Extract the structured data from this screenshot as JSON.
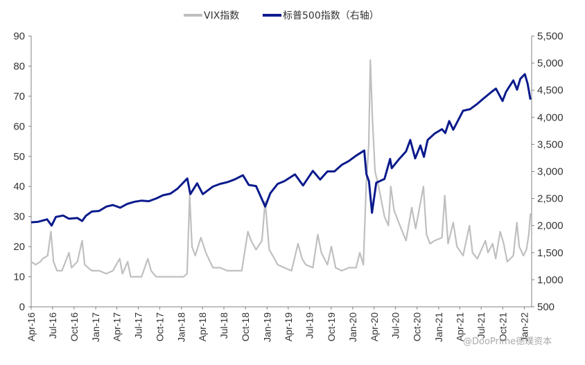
{
  "chart_data": {
    "type": "line",
    "title": "",
    "xlabel": "",
    "ylabel": "",
    "legend_position": "top-center",
    "grid": false,
    "x_tick_labels": [
      "Apr-16",
      "Jul-16",
      "Oct-16",
      "Jan-17",
      "Apr-17",
      "Jul-17",
      "Oct-17",
      "Jan-18",
      "Apr-18",
      "Jul-18",
      "Oct-18",
      "Jan-19",
      "Apr-19",
      "Jul-19",
      "Oct-19",
      "Jan-20",
      "Apr-20",
      "Jul-20",
      "Oct-20",
      "Jan-21",
      "Apr-21",
      "Jul-21",
      "Oct-21",
      "Jan-22"
    ],
    "y_left": {
      "ylim": [
        0,
        90
      ],
      "ticks": [
        "0",
        "10",
        "20",
        "30",
        "40",
        "50",
        "60",
        "70",
        "80",
        "90"
      ]
    },
    "y_right": {
      "ylim": [
        500,
        5500
      ],
      "ticks": [
        "500",
        "1,000",
        "1,500",
        "2,000",
        "2,500",
        "3,000",
        "3,500",
        "4,000",
        "4,500",
        "5,000",
        "5,500"
      ]
    },
    "series": [
      {
        "name": "VIX指数",
        "axis": "left",
        "color": "#bfbfbf",
        "points": [
          [
            "2016-04-01",
            15
          ],
          [
            "2016-04-20",
            14
          ],
          [
            "2016-05-10",
            15
          ],
          [
            "2016-05-20",
            16
          ],
          [
            "2016-06-10",
            17
          ],
          [
            "2016-06-24",
            25
          ],
          [
            "2016-07-05",
            15
          ],
          [
            "2016-07-20",
            12
          ],
          [
            "2016-08-10",
            12
          ],
          [
            "2016-09-09",
            18
          ],
          [
            "2016-09-20",
            13
          ],
          [
            "2016-10-15",
            15
          ],
          [
            "2016-11-04",
            22
          ],
          [
            "2016-11-15",
            14
          ],
          [
            "2016-12-15",
            12
          ],
          [
            "2017-01-15",
            12
          ],
          [
            "2017-02-15",
            11
          ],
          [
            "2017-03-15",
            12
          ],
          [
            "2017-04-13",
            16
          ],
          [
            "2017-04-25",
            11
          ],
          [
            "2017-05-17",
            15
          ],
          [
            "2017-05-30",
            10
          ],
          [
            "2017-06-15",
            10
          ],
          [
            "2017-07-15",
            10
          ],
          [
            "2017-08-11",
            16
          ],
          [
            "2017-08-25",
            12
          ],
          [
            "2017-09-15",
            10
          ],
          [
            "2017-10-15",
            10
          ],
          [
            "2017-11-15",
            10
          ],
          [
            "2017-12-15",
            10
          ],
          [
            "2018-01-10",
            10
          ],
          [
            "2018-01-25",
            11
          ],
          [
            "2018-02-05",
            37
          ],
          [
            "2018-02-15",
            20
          ],
          [
            "2018-03-01",
            17
          ],
          [
            "2018-03-25",
            23
          ],
          [
            "2018-04-15",
            18
          ],
          [
            "2018-05-15",
            13
          ],
          [
            "2018-06-15",
            13
          ],
          [
            "2018-07-15",
            12
          ],
          [
            "2018-08-15",
            12
          ],
          [
            "2018-09-15",
            12
          ],
          [
            "2018-10-11",
            25
          ],
          [
            "2018-10-25",
            22
          ],
          [
            "2018-11-15",
            19
          ],
          [
            "2018-12-10",
            22
          ],
          [
            "2018-12-24",
            35
          ],
          [
            "2019-01-10",
            19
          ],
          [
            "2019-01-25",
            17
          ],
          [
            "2019-02-15",
            14
          ],
          [
            "2019-03-15",
            13
          ],
          [
            "2019-04-15",
            12
          ],
          [
            "2019-05-13",
            21
          ],
          [
            "2019-05-30",
            16
          ],
          [
            "2019-06-15",
            14
          ],
          [
            "2019-07-15",
            13
          ],
          [
            "2019-08-05",
            24
          ],
          [
            "2019-08-20",
            18
          ],
          [
            "2019-09-15",
            14
          ],
          [
            "2019-10-02",
            20
          ],
          [
            "2019-10-20",
            13
          ],
          [
            "2019-11-15",
            12
          ],
          [
            "2019-12-15",
            13
          ],
          [
            "2020-01-15",
            13
          ],
          [
            "2020-01-31",
            18
          ],
          [
            "2020-02-15",
            14
          ],
          [
            "2020-02-27",
            40
          ],
          [
            "2020-03-09",
            54
          ],
          [
            "2020-03-16",
            82
          ],
          [
            "2020-03-25",
            62
          ],
          [
            "2020-04-05",
            45
          ],
          [
            "2020-04-20",
            40
          ],
          [
            "2020-05-15",
            30
          ],
          [
            "2020-06-01",
            27
          ],
          [
            "2020-06-11",
            40
          ],
          [
            "2020-06-25",
            32
          ],
          [
            "2020-07-15",
            28
          ],
          [
            "2020-08-15",
            22
          ],
          [
            "2020-09-08",
            33
          ],
          [
            "2020-09-25",
            26
          ],
          [
            "2020-10-28",
            40
          ],
          [
            "2020-11-10",
            24
          ],
          [
            "2020-11-25",
            21
          ],
          [
            "2020-12-15",
            22
          ],
          [
            "2021-01-15",
            23
          ],
          [
            "2021-01-27",
            37
          ],
          [
            "2021-02-10",
            21
          ],
          [
            "2021-03-04",
            28
          ],
          [
            "2021-03-20",
            20
          ],
          [
            "2021-04-15",
            17
          ],
          [
            "2021-05-12",
            27
          ],
          [
            "2021-05-25",
            18
          ],
          [
            "2021-06-15",
            16
          ],
          [
            "2021-07-19",
            22
          ],
          [
            "2021-07-30",
            18
          ],
          [
            "2021-08-19",
            21
          ],
          [
            "2021-09-01",
            16
          ],
          [
            "2021-09-20",
            25
          ],
          [
            "2021-10-05",
            21
          ],
          [
            "2021-10-20",
            15
          ],
          [
            "2021-11-15",
            17
          ],
          [
            "2021-11-30",
            28
          ],
          [
            "2021-12-10",
            20
          ],
          [
            "2021-12-28",
            17
          ],
          [
            "2022-01-10",
            19
          ],
          [
            "2022-01-20",
            24
          ],
          [
            "2022-01-27",
            31
          ]
        ]
      },
      {
        "name": "标普500指数（右轴）",
        "axis": "right",
        "color": "#0a1a8c",
        "points": [
          [
            "2016-04-01",
            2060
          ],
          [
            "2016-05-01",
            2070
          ],
          [
            "2016-06-08",
            2115
          ],
          [
            "2016-06-27",
            2000
          ],
          [
            "2016-07-15",
            2160
          ],
          [
            "2016-08-15",
            2185
          ],
          [
            "2016-09-09",
            2127
          ],
          [
            "2016-10-15",
            2140
          ],
          [
            "2016-11-04",
            2085
          ],
          [
            "2016-11-20",
            2180
          ],
          [
            "2016-12-15",
            2260
          ],
          [
            "2017-01-15",
            2270
          ],
          [
            "2017-02-15",
            2350
          ],
          [
            "2017-03-15",
            2380
          ],
          [
            "2017-04-15",
            2330
          ],
          [
            "2017-05-15",
            2400
          ],
          [
            "2017-06-15",
            2440
          ],
          [
            "2017-07-15",
            2460
          ],
          [
            "2017-08-15",
            2450
          ],
          [
            "2017-09-15",
            2500
          ],
          [
            "2017-10-15",
            2560
          ],
          [
            "2017-11-15",
            2590
          ],
          [
            "2017-12-15",
            2680
          ],
          [
            "2018-01-26",
            2870
          ],
          [
            "2018-02-08",
            2580
          ],
          [
            "2018-03-09",
            2780
          ],
          [
            "2018-04-02",
            2580
          ],
          [
            "2018-05-15",
            2720
          ],
          [
            "2018-06-15",
            2770
          ],
          [
            "2018-07-15",
            2800
          ],
          [
            "2018-08-15",
            2850
          ],
          [
            "2018-09-20",
            2930
          ],
          [
            "2018-10-15",
            2750
          ],
          [
            "2018-11-15",
            2730
          ],
          [
            "2018-12-24",
            2350
          ],
          [
            "2019-01-15",
            2600
          ],
          [
            "2019-02-15",
            2770
          ],
          [
            "2019-03-15",
            2820
          ],
          [
            "2019-04-30",
            2945
          ],
          [
            "2019-06-03",
            2740
          ],
          [
            "2019-07-15",
            3010
          ],
          [
            "2019-08-15",
            2850
          ],
          [
            "2019-09-15",
            3000
          ],
          [
            "2019-10-15",
            3000
          ],
          [
            "2019-11-15",
            3120
          ],
          [
            "2019-12-15",
            3190
          ],
          [
            "2020-01-15",
            3290
          ],
          [
            "2020-02-19",
            3386
          ],
          [
            "2020-02-28",
            2950
          ],
          [
            "2020-03-10",
            2820
          ],
          [
            "2020-03-23",
            2237
          ],
          [
            "2020-04-10",
            2790
          ],
          [
            "2020-05-15",
            2860
          ],
          [
            "2020-06-08",
            3230
          ],
          [
            "2020-06-15",
            3060
          ],
          [
            "2020-07-15",
            3220
          ],
          [
            "2020-08-15",
            3370
          ],
          [
            "2020-09-02",
            3580
          ],
          [
            "2020-09-23",
            3240
          ],
          [
            "2020-10-15",
            3480
          ],
          [
            "2020-10-30",
            3270
          ],
          [
            "2020-11-15",
            3580
          ],
          [
            "2020-12-15",
            3700
          ],
          [
            "2021-01-15",
            3780
          ],
          [
            "2021-01-29",
            3710
          ],
          [
            "2021-02-15",
            3930
          ],
          [
            "2021-03-04",
            3770
          ],
          [
            "2021-04-15",
            4120
          ],
          [
            "2021-05-15",
            4150
          ],
          [
            "2021-06-15",
            4250
          ],
          [
            "2021-07-15",
            4360
          ],
          [
            "2021-08-15",
            4470
          ],
          [
            "2021-09-02",
            4530
          ],
          [
            "2021-09-30",
            4300
          ],
          [
            "2021-10-15",
            4470
          ],
          [
            "2021-11-15",
            4680
          ],
          [
            "2021-12-01",
            4510
          ],
          [
            "2021-12-15",
            4710
          ],
          [
            "2022-01-03",
            4796
          ],
          [
            "2022-01-15",
            4620
          ],
          [
            "2022-01-27",
            4326
          ]
        ]
      }
    ]
  },
  "watermark": "@DooPrime德璞资本"
}
